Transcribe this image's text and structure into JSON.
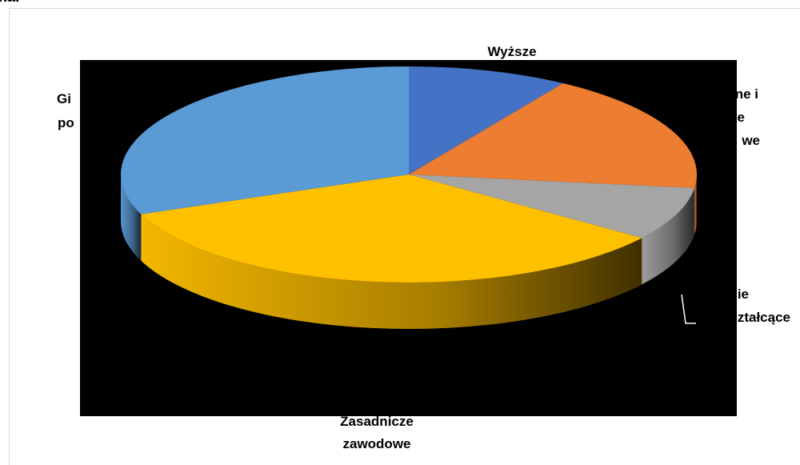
{
  "caption": "ka.",
  "chart_data": {
    "type": "pie",
    "style": "3d",
    "legend": "none",
    "slices": [
      {
        "label": "Wyższe",
        "value": 9,
        "color": "#4472C4"
      },
      {
        "label": "Policealne i średnie zawodowe",
        "value": 18,
        "color": "#ED7D31"
      },
      {
        "label": "Średnie ogólnokształcące",
        "value": 8,
        "color": "#A5A5A5"
      },
      {
        "label": "Zasadnicze zawodowe",
        "value": 34,
        "color": "#FFC000"
      },
      {
        "label": "Gimnazjalne i poniżej",
        "value": 31,
        "color": "#5B9BD5"
      }
    ],
    "visible_label_lines": [
      [
        "Wyższe"
      ],
      [
        "ne i",
        "e",
        "we"
      ],
      [
        "nie",
        "ztałcące"
      ],
      [
        "Zasadnicze",
        "zawodowe"
      ],
      [
        "Gi",
        "po"
      ]
    ]
  }
}
